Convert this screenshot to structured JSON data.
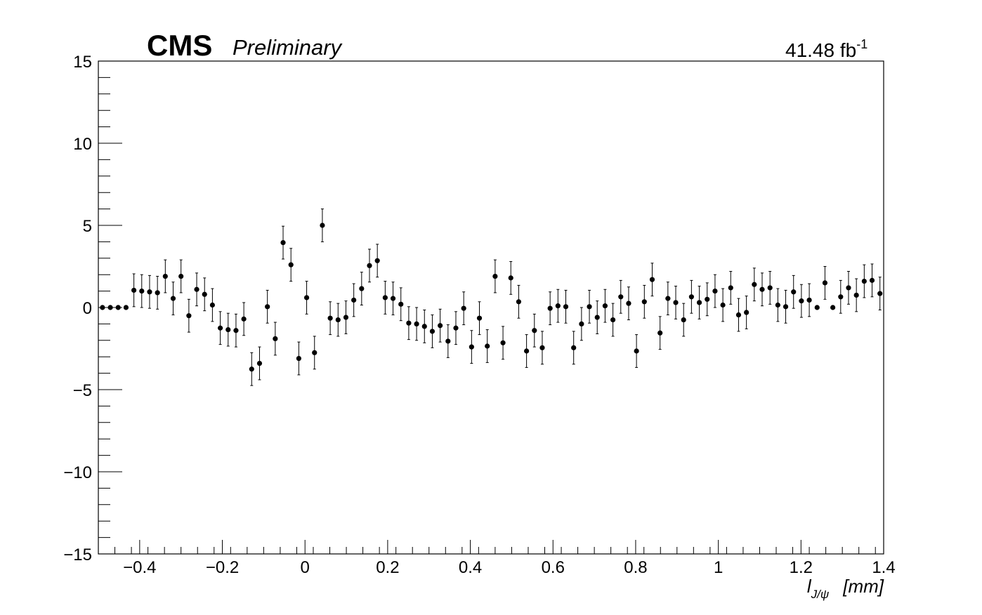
{
  "header": {
    "experiment": "CMS",
    "status": "Preliminary",
    "luminosity": "41.48 fb",
    "luminosity_exponent": "-1"
  },
  "chart_data": {
    "type": "scatter",
    "title": "",
    "xlabel_main": "l",
    "xlabel_sub": "J/ψ",
    "xlabel_unit": "[mm]",
    "ylabel": "",
    "xlim": [
      -0.5,
      1.4
    ],
    "ylim": [
      -15,
      15
    ],
    "xticks": [
      -0.4,
      -0.2,
      0,
      0.2,
      0.4,
      0.6,
      0.8,
      1,
      1.2,
      1.4
    ],
    "xtick_labels": [
      "−0.4",
      "−0.2",
      "0",
      "0.2",
      "0.4",
      "0.6",
      "0.8",
      "1",
      "1.2",
      "1.4"
    ],
    "yticks": [
      -15,
      -10,
      -5,
      0,
      5,
      10,
      15
    ],
    "ytick_labels": [
      "−15",
      "−10",
      "−5",
      "0",
      "5",
      "10",
      "15"
    ],
    "grid": false,
    "legend": "none",
    "marker_color": "#000000",
    "points": [
      {
        "x": -0.49,
        "y": 0.0,
        "err": 0.0
      },
      {
        "x": -0.471,
        "y": 0.0,
        "err": 0.0
      },
      {
        "x": -0.452,
        "y": 0.0,
        "err": 0.0
      },
      {
        "x": -0.433,
        "y": 0.0,
        "err": 0.0
      },
      {
        "x": -0.414,
        "y": 1.05,
        "err": 1.0
      },
      {
        "x": -0.395,
        "y": 1.0,
        "err": 1.0
      },
      {
        "x": -0.376,
        "y": 0.95,
        "err": 1.0
      },
      {
        "x": -0.357,
        "y": 0.9,
        "err": 1.0
      },
      {
        "x": -0.338,
        "y": 1.9,
        "err": 1.0
      },
      {
        "x": -0.319,
        "y": 0.55,
        "err": 1.0
      },
      {
        "x": -0.3,
        "y": 1.9,
        "err": 1.0
      },
      {
        "x": -0.281,
        "y": -0.5,
        "err": 1.0
      },
      {
        "x": -0.262,
        "y": 1.1,
        "err": 1.0
      },
      {
        "x": -0.243,
        "y": 0.8,
        "err": 1.0
      },
      {
        "x": -0.224,
        "y": 0.15,
        "err": 1.0
      },
      {
        "x": -0.205,
        "y": -1.25,
        "err": 1.0
      },
      {
        "x": -0.186,
        "y": -1.35,
        "err": 1.0
      },
      {
        "x": -0.167,
        "y": -1.4,
        "err": 1.0
      },
      {
        "x": -0.148,
        "y": -0.7,
        "err": 1.0
      },
      {
        "x": -0.129,
        "y": -3.75,
        "err": 1.0
      },
      {
        "x": -0.11,
        "y": -3.4,
        "err": 1.0
      },
      {
        "x": -0.091,
        "y": 0.05,
        "err": 1.0
      },
      {
        "x": -0.072,
        "y": -1.9,
        "err": 1.0
      },
      {
        "x": -0.053,
        "y": 3.95,
        "err": 1.0
      },
      {
        "x": -0.034,
        "y": 2.6,
        "err": 1.0
      },
      {
        "x": -0.015,
        "y": -3.1,
        "err": 1.0
      },
      {
        "x": 0.004,
        "y": 0.6,
        "err": 1.0
      },
      {
        "x": 0.023,
        "y": -2.75,
        "err": 1.0
      },
      {
        "x": 0.042,
        "y": 5.0,
        "err": 1.0
      },
      {
        "x": 0.061,
        "y": -0.65,
        "err": 1.0
      },
      {
        "x": 0.08,
        "y": -0.75,
        "err": 1.0
      },
      {
        "x": 0.099,
        "y": -0.6,
        "err": 1.0
      },
      {
        "x": 0.118,
        "y": 0.45,
        "err": 1.0
      },
      {
        "x": 0.137,
        "y": 1.15,
        "err": 1.0
      },
      {
        "x": 0.156,
        "y": 2.55,
        "err": 1.0
      },
      {
        "x": 0.175,
        "y": 2.85,
        "err": 1.0
      },
      {
        "x": 0.194,
        "y": 0.6,
        "err": 1.0
      },
      {
        "x": 0.213,
        "y": 0.55,
        "err": 1.0
      },
      {
        "x": 0.232,
        "y": 0.2,
        "err": 1.0
      },
      {
        "x": 0.251,
        "y": -0.95,
        "err": 1.0
      },
      {
        "x": 0.27,
        "y": -1.0,
        "err": 1.0
      },
      {
        "x": 0.289,
        "y": -1.15,
        "err": 1.0
      },
      {
        "x": 0.308,
        "y": -1.45,
        "err": 1.0
      },
      {
        "x": 0.327,
        "y": -1.1,
        "err": 1.0
      },
      {
        "x": 0.346,
        "y": -2.05,
        "err": 1.0
      },
      {
        "x": 0.365,
        "y": -1.25,
        "err": 1.0
      },
      {
        "x": 0.384,
        "y": -0.05,
        "err": 1.0
      },
      {
        "x": 0.403,
        "y": -2.4,
        "err": 1.0
      },
      {
        "x": 0.422,
        "y": -0.65,
        "err": 1.0
      },
      {
        "x": 0.441,
        "y": -2.35,
        "err": 1.0
      },
      {
        "x": 0.46,
        "y": 1.9,
        "err": 1.0
      },
      {
        "x": 0.479,
        "y": -2.15,
        "err": 1.0
      },
      {
        "x": 0.498,
        "y": 1.8,
        "err": 1.0
      },
      {
        "x": 0.517,
        "y": 0.35,
        "err": 1.0
      },
      {
        "x": 0.536,
        "y": -2.65,
        "err": 1.0
      },
      {
        "x": 0.555,
        "y": -1.4,
        "err": 1.0
      },
      {
        "x": 0.574,
        "y": -2.45,
        "err": 1.0
      },
      {
        "x": 0.593,
        "y": -0.05,
        "err": 1.0
      },
      {
        "x": 0.612,
        "y": 0.1,
        "err": 1.0
      },
      {
        "x": 0.631,
        "y": 0.05,
        "err": 1.0
      },
      {
        "x": 0.65,
        "y": -2.45,
        "err": 1.0
      },
      {
        "x": 0.669,
        "y": -1.0,
        "err": 1.0
      },
      {
        "x": 0.688,
        "y": 0.05,
        "err": 1.0
      },
      {
        "x": 0.707,
        "y": -0.6,
        "err": 1.0
      },
      {
        "x": 0.726,
        "y": 0.1,
        "err": 1.0
      },
      {
        "x": 0.745,
        "y": -0.75,
        "err": 1.0
      },
      {
        "x": 0.764,
        "y": 0.65,
        "err": 1.0
      },
      {
        "x": 0.783,
        "y": 0.25,
        "err": 1.0
      },
      {
        "x": 0.802,
        "y": -2.65,
        "err": 1.0
      },
      {
        "x": 0.821,
        "y": 0.35,
        "err": 1.0
      },
      {
        "x": 0.84,
        "y": 1.7,
        "err": 1.0
      },
      {
        "x": 0.859,
        "y": -1.55,
        "err": 1.0
      },
      {
        "x": 0.878,
        "y": 0.55,
        "err": 1.0
      },
      {
        "x": 0.897,
        "y": 0.3,
        "err": 1.0
      },
      {
        "x": 0.916,
        "y": -0.75,
        "err": 1.0
      },
      {
        "x": 0.935,
        "y": 0.65,
        "err": 1.0
      },
      {
        "x": 0.954,
        "y": 0.3,
        "err": 1.0
      },
      {
        "x": 0.973,
        "y": 0.5,
        "err": 1.0
      },
      {
        "x": 0.992,
        "y": 1.0,
        "err": 1.0
      },
      {
        "x": 1.011,
        "y": 0.15,
        "err": 1.0
      },
      {
        "x": 1.03,
        "y": 1.2,
        "err": 1.0
      },
      {
        "x": 1.049,
        "y": -0.45,
        "err": 1.0
      },
      {
        "x": 1.068,
        "y": -0.3,
        "err": 1.0
      },
      {
        "x": 1.087,
        "y": 1.4,
        "err": 1.0
      },
      {
        "x": 1.106,
        "y": 1.1,
        "err": 1.0
      },
      {
        "x": 1.125,
        "y": 1.2,
        "err": 1.0
      },
      {
        "x": 1.144,
        "y": 0.15,
        "err": 1.0
      },
      {
        "x": 1.163,
        "y": 0.05,
        "err": 1.0
      },
      {
        "x": 1.182,
        "y": 0.95,
        "err": 1.0
      },
      {
        "x": 1.201,
        "y": 0.4,
        "err": 1.0
      },
      {
        "x": 1.22,
        "y": 0.45,
        "err": 1.0
      },
      {
        "x": 1.239,
        "y": 0.0,
        "err": 0.0
      },
      {
        "x": 1.258,
        "y": 1.5,
        "err": 1.0
      },
      {
        "x": 1.277,
        "y": 0.0,
        "err": 0.0
      },
      {
        "x": 1.296,
        "y": 0.65,
        "err": 1.0
      },
      {
        "x": 1.315,
        "y": 1.2,
        "err": 1.0
      },
      {
        "x": 1.334,
        "y": 0.75,
        "err": 1.0
      },
      {
        "x": 1.353,
        "y": 1.6,
        "err": 1.0
      },
      {
        "x": 1.372,
        "y": 1.65,
        "err": 1.0
      },
      {
        "x": 1.391,
        "y": 0.85,
        "err": 1.0
      }
    ]
  }
}
